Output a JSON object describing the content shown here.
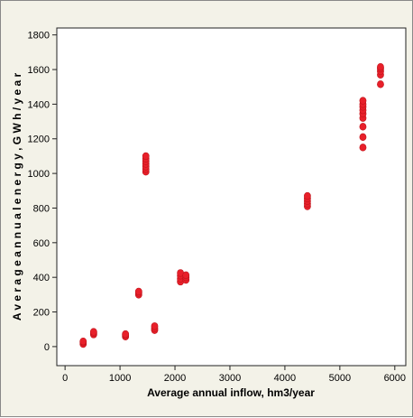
{
  "chart_data": {
    "type": "scatter",
    "xlabel": "Average annual inflow, hm3/year",
    "ylabel": "A v e r a g e  a n n u a l  e n e r g y ,  G W h / y e a r",
    "xlim": [
      -150,
      6200
    ],
    "ylim": [
      -110,
      1840
    ],
    "x_ticks": [
      0,
      1000,
      2000,
      3000,
      4000,
      5000,
      6000
    ],
    "y_ticks": [
      0,
      200,
      400,
      600,
      800,
      1000,
      1200,
      1400,
      1600,
      1800
    ],
    "grid": false,
    "marker_color": "#e8202a",
    "series": [
      {
        "points": [
          [
            330,
            15
          ],
          [
            330,
            25
          ],
          [
            330,
            30
          ],
          [
            520,
            70
          ],
          [
            520,
            78
          ],
          [
            520,
            85
          ],
          [
            1100,
            58
          ],
          [
            1100,
            66
          ],
          [
            1100,
            72
          ],
          [
            1340,
            300
          ],
          [
            1340,
            310
          ],
          [
            1340,
            318
          ],
          [
            1470,
            1010
          ],
          [
            1470,
            1025
          ],
          [
            1470,
            1040
          ],
          [
            1470,
            1055
          ],
          [
            1470,
            1070
          ],
          [
            1470,
            1085
          ],
          [
            1470,
            1100
          ],
          [
            1630,
            95
          ],
          [
            1630,
            105
          ],
          [
            1630,
            118
          ],
          [
            2100,
            375
          ],
          [
            2100,
            392
          ],
          [
            2100,
            410
          ],
          [
            2100,
            425
          ],
          [
            2200,
            385
          ],
          [
            2200,
            400
          ],
          [
            2200,
            412
          ],
          [
            4410,
            810
          ],
          [
            4410,
            825
          ],
          [
            4410,
            840
          ],
          [
            4410,
            855
          ],
          [
            4410,
            870
          ],
          [
            5420,
            1150
          ],
          [
            5420,
            1210
          ],
          [
            5420,
            1270
          ],
          [
            5420,
            1320
          ],
          [
            5420,
            1345
          ],
          [
            5420,
            1365
          ],
          [
            5420,
            1385
          ],
          [
            5420,
            1400
          ],
          [
            5420,
            1420
          ],
          [
            5740,
            1515
          ],
          [
            5740,
            1570
          ],
          [
            5740,
            1590
          ],
          [
            5740,
            1605
          ],
          [
            5740,
            1615
          ]
        ]
      }
    ]
  }
}
